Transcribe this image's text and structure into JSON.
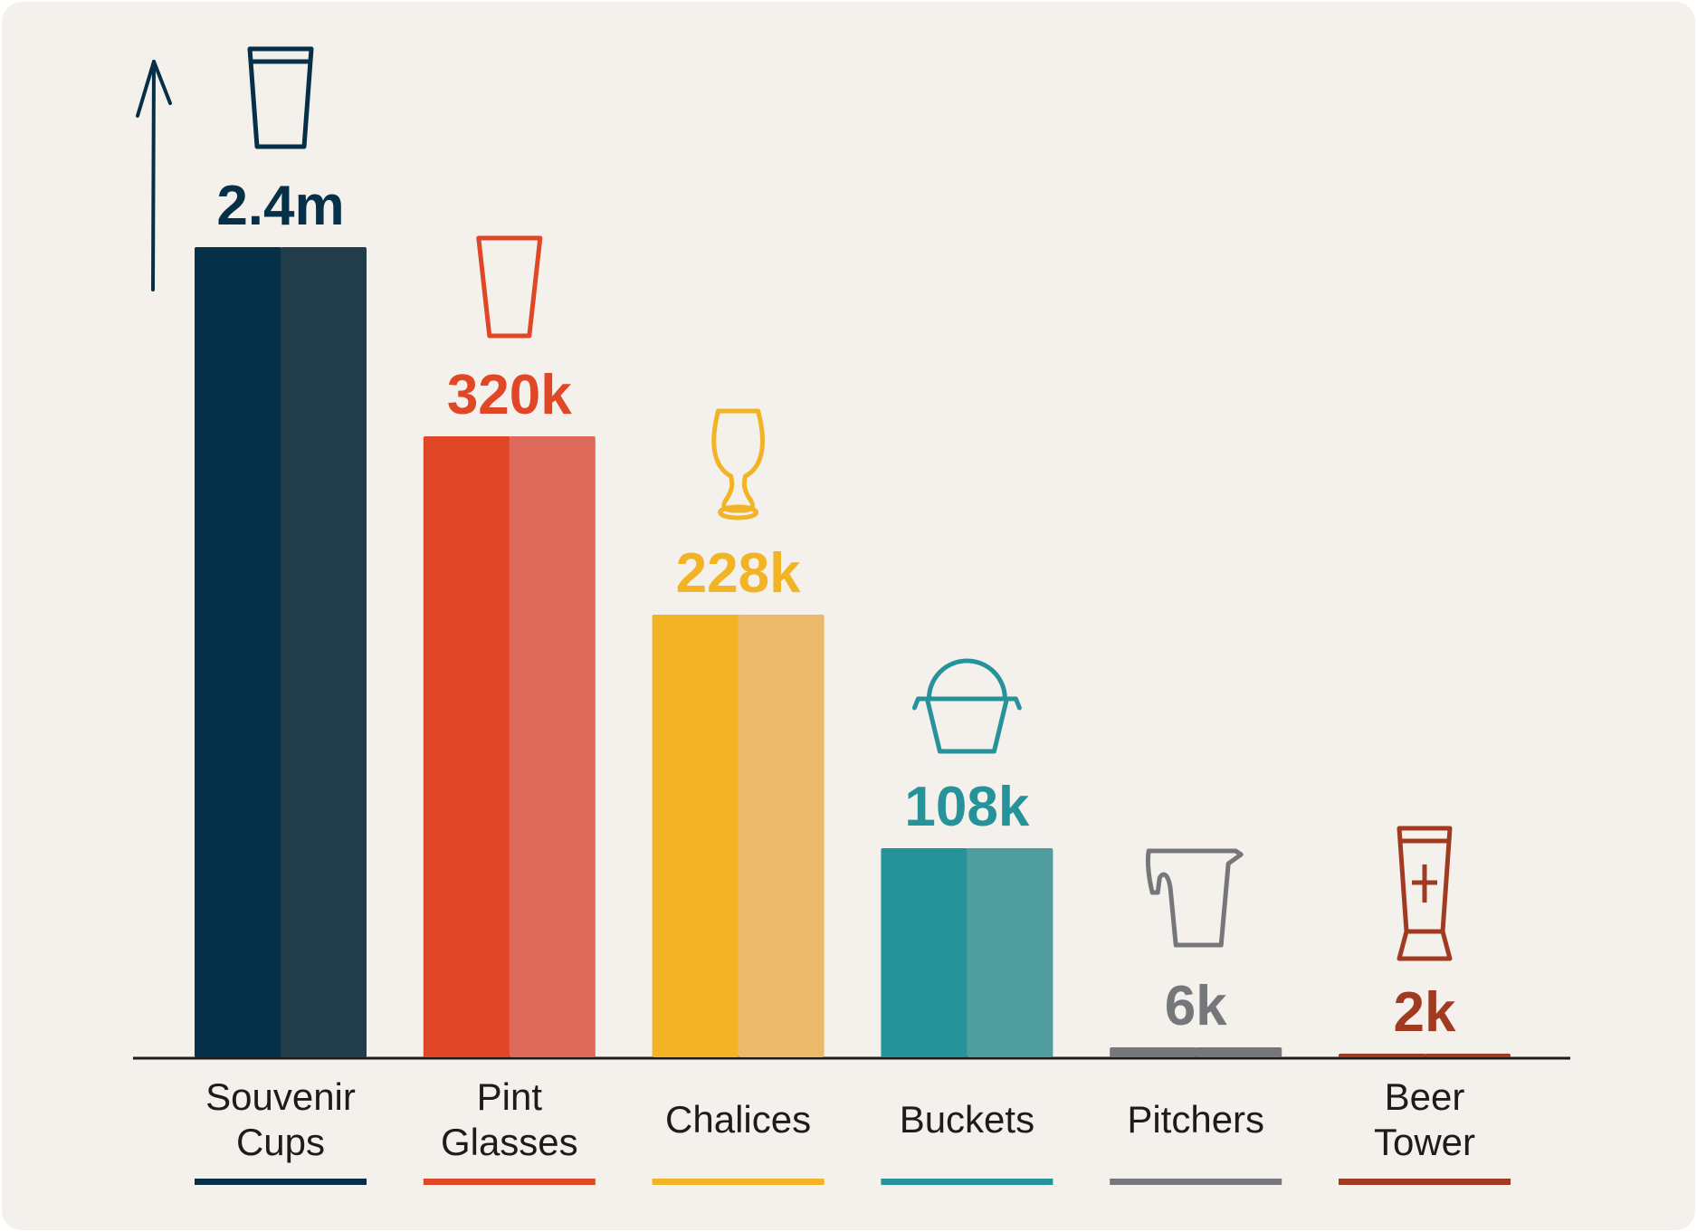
{
  "chart_data": {
    "type": "bar",
    "title": "",
    "xlabel": "",
    "ylabel": "",
    "categories": [
      {
        "label_lines": [
          "Souvenir",
          "Cups"
        ],
        "value": 2400000,
        "display": "2.4m",
        "color": "#053047",
        "color_light": "#213d49",
        "icon": "cup-icon"
      },
      {
        "label_lines": [
          "Pint",
          "Glasses"
        ],
        "value": 320000,
        "display": "320k",
        "color": "#df4727",
        "color_light": "#df695b",
        "icon": "pint-glass-icon"
      },
      {
        "label_lines": [
          "Chalices"
        ],
        "value": 228000,
        "display": "228k",
        "color": "#f2b324",
        "color_light": "#ecb96b",
        "icon": "chalice-icon"
      },
      {
        "label_lines": [
          "Buckets"
        ],
        "value": 108000,
        "display": "108k",
        "color": "#26939b",
        "color_light": "#509d9e",
        "icon": "bucket-icon"
      },
      {
        "label_lines": [
          "Pitchers"
        ],
        "value": 6000,
        "display": "6k",
        "color": "#75777a",
        "color_light": "#75777a",
        "icon": "pitcher-icon"
      },
      {
        "label_lines": [
          "Beer",
          "Tower"
        ],
        "value": 2000,
        "display": "2k",
        "color": "#a03b22",
        "color_light": "#a03b22",
        "icon": "beer-tower-icon"
      }
    ],
    "axis": {
      "y_arrow": true,
      "grid": false,
      "scale": "broken / non-linear"
    }
  }
}
